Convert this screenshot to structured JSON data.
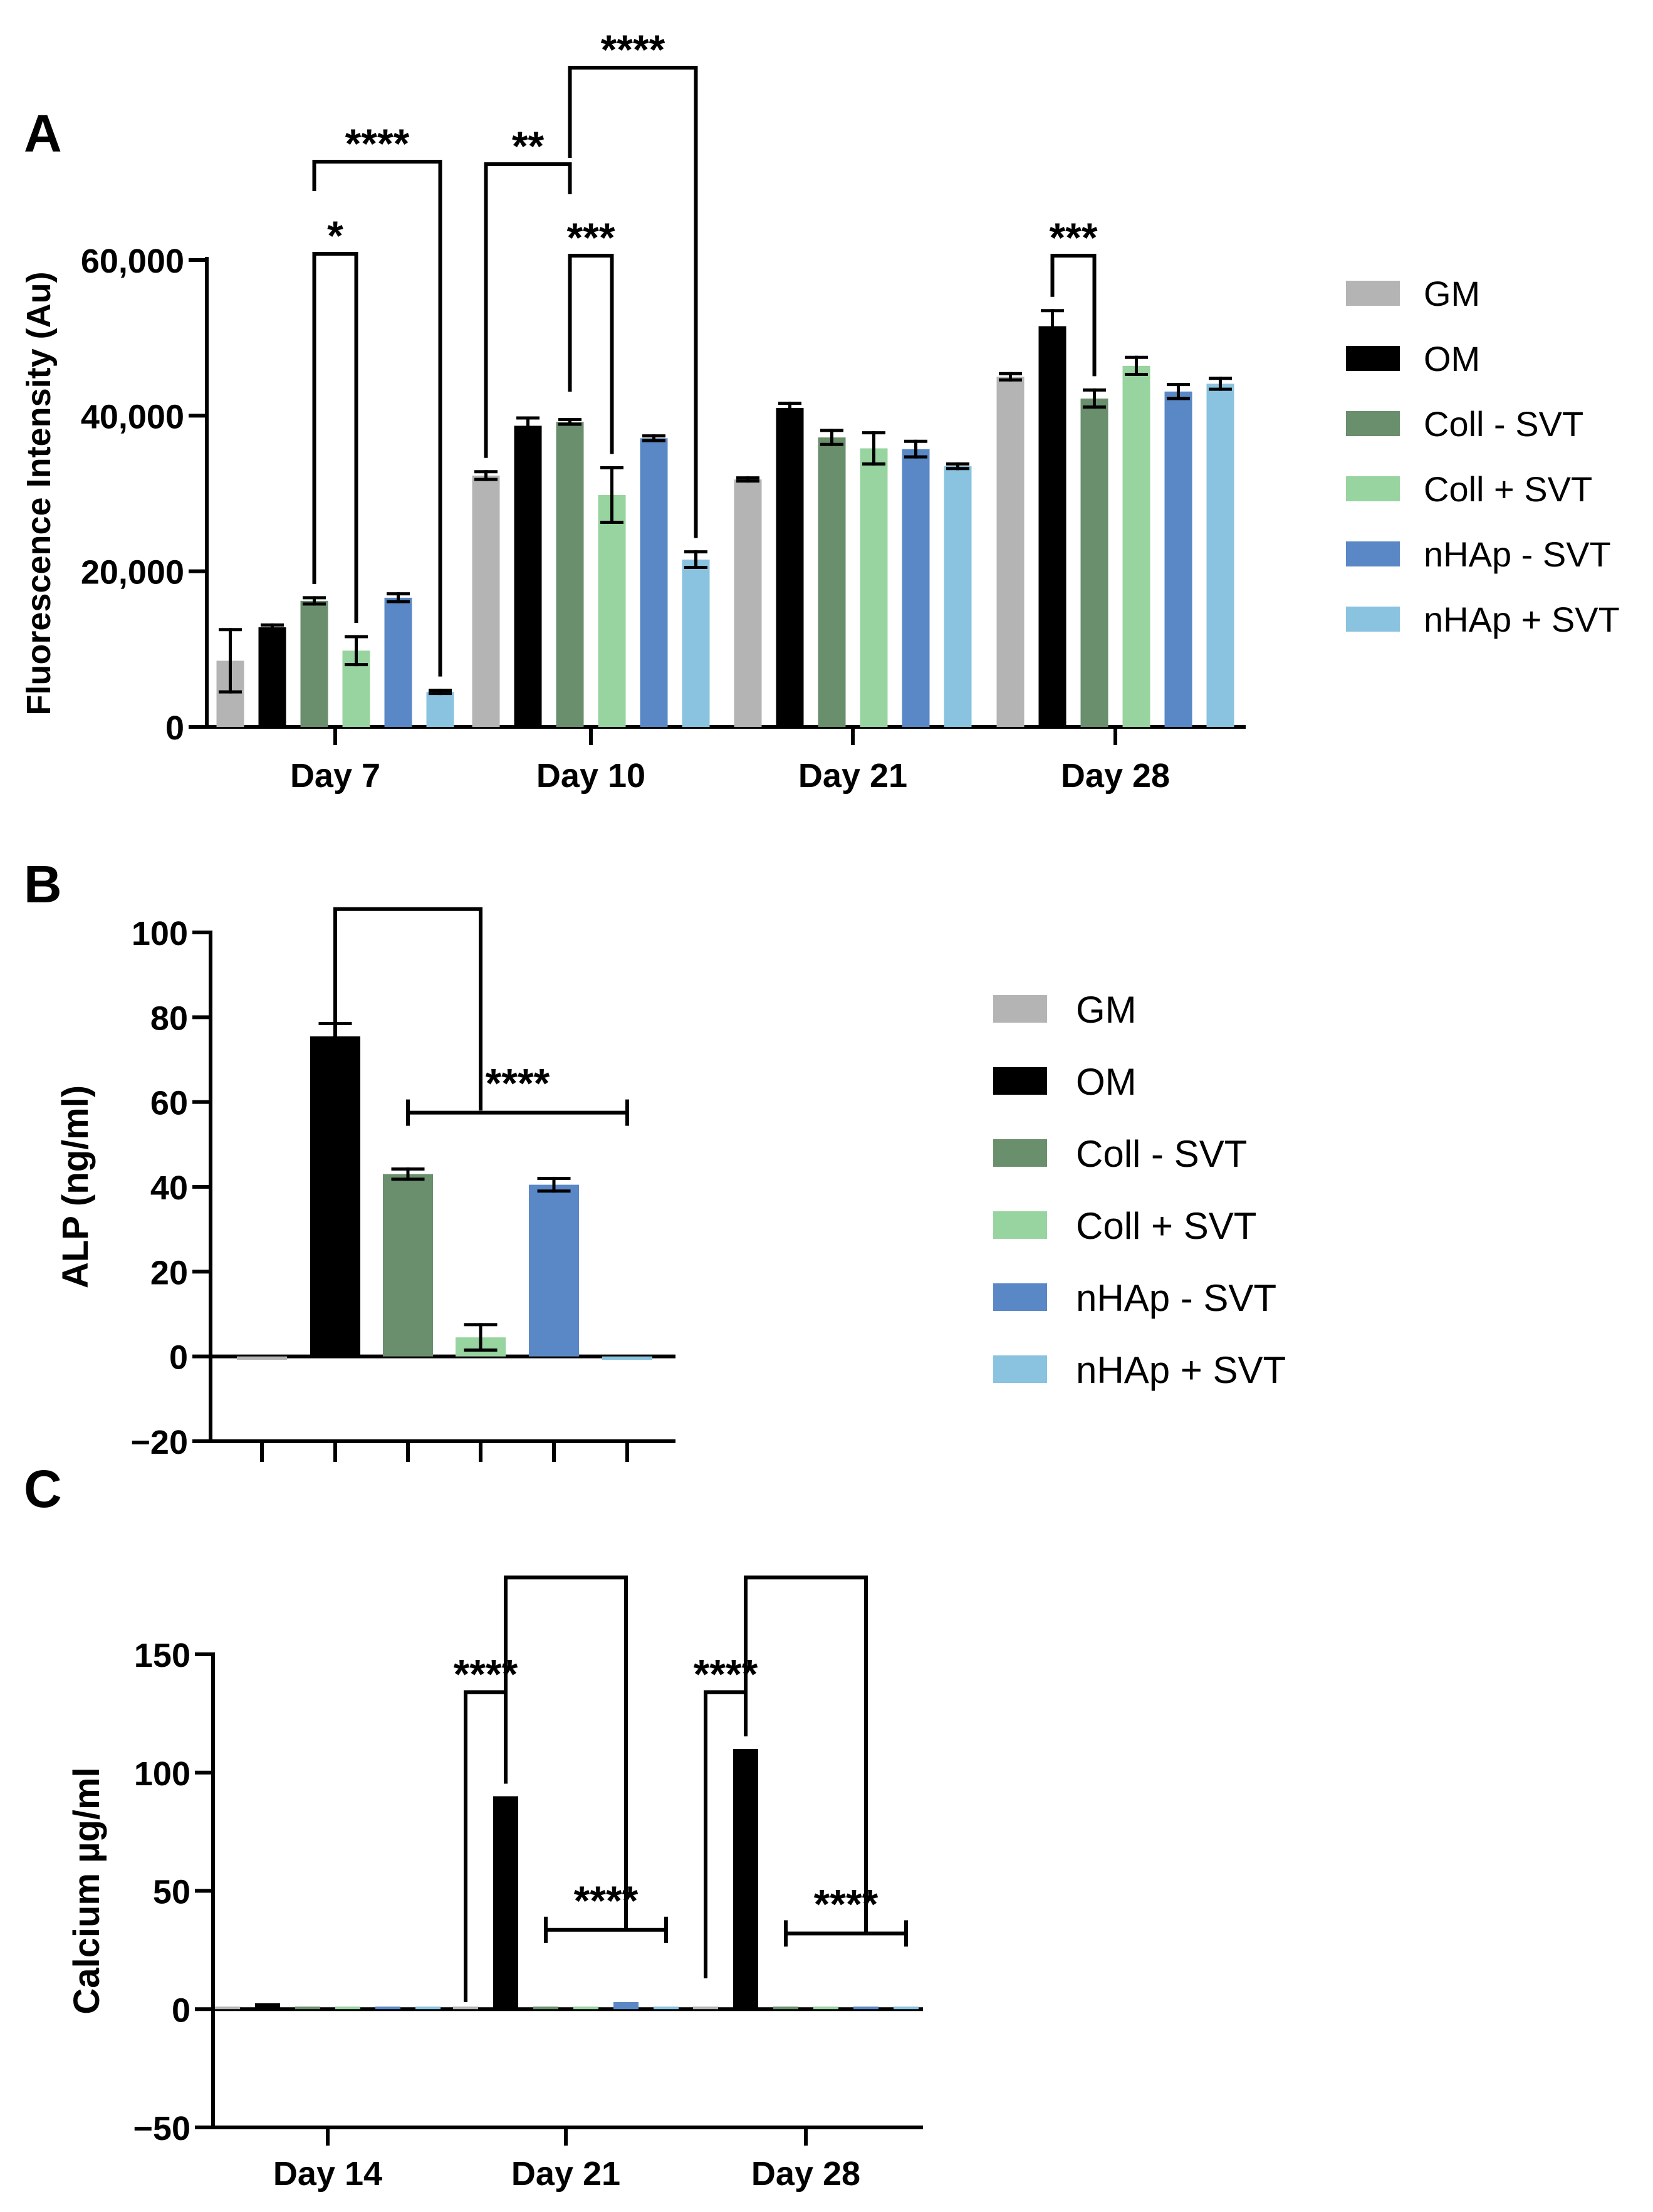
{
  "colors": {
    "GM": "#b4b4b4",
    "OM": "#000000",
    "Coll - SVT": "#6a8f6d",
    "Coll + SVT": "#98d49f",
    "nHAp - SVT": "#5a88c6",
    "nHAp + SVT": "#8ac3df"
  },
  "chart_data": [
    {
      "panel": "A",
      "type": "bar",
      "ylabel": "Fluorescence Intensity (Au)",
      "ylim": [
        0,
        60000
      ],
      "yticks": [
        0,
        20000,
        40000,
        60000
      ],
      "ytick_labels": [
        "0",
        "20,000",
        "40,000",
        "60,000"
      ],
      "categories": [
        "Day 7",
        "Day 10",
        "Day 21",
        "Day 28"
      ],
      "legend": [
        "GM",
        "OM",
        "Coll - SVT",
        "Coll + SVT",
        "nHAp - SVT",
        "nHAp + SVT"
      ],
      "legend_position": "right",
      "series": [
        {
          "name": "GM",
          "values": [
            8500,
            32300,
            31800,
            45000
          ],
          "errors": [
            4000,
            500,
            200,
            400
          ]
        },
        {
          "name": "OM",
          "values": [
            12800,
            38700,
            41000,
            51500
          ],
          "errors": [
            300,
            1000,
            600,
            2000
          ]
        },
        {
          "name": "Coll - SVT",
          "values": [
            16200,
            39200,
            37200,
            42200
          ],
          "errors": [
            400,
            300,
            900,
            1100
          ]
        },
        {
          "name": "Coll + SVT",
          "values": [
            9800,
            29800,
            35800,
            46400
          ],
          "errors": [
            1800,
            3500,
            2000,
            1100
          ]
        },
        {
          "name": "nHAp - SVT",
          "values": [
            16600,
            37100,
            35700,
            43100
          ],
          "errors": [
            500,
            300,
            1000,
            900
          ]
        },
        {
          "name": "nHAp + SVT",
          "values": [
            4500,
            21500,
            33500,
            44100
          ],
          "errors": [
            200,
            1000,
            300,
            700
          ]
        }
      ],
      "annotations": [
        {
          "label": "*",
          "from": [
            "Day 7",
            "Coll - SVT"
          ],
          "to": [
            "Day 7",
            "Coll + SVT"
          ]
        },
        {
          "label": "****",
          "from": [
            "Day 7",
            "Coll - SVT"
          ],
          "to": [
            "Day 7",
            "nHAp + SVT"
          ]
        },
        {
          "label": "**",
          "from": [
            "Day 10",
            "GM"
          ],
          "to": [
            "Day 10",
            "Coll - SVT"
          ]
        },
        {
          "label": "***",
          "from": [
            "Day 10",
            "Coll - SVT"
          ],
          "to": [
            "Day 10",
            "Coll + SVT"
          ]
        },
        {
          "label": "****",
          "from": [
            "Day 10",
            "Coll - SVT"
          ],
          "to": [
            "Day 10",
            "nHAp + SVT"
          ]
        },
        {
          "label": "***",
          "from": [
            "Day 28",
            "OM"
          ],
          "to": [
            "Day 28",
            "Coll - SVT"
          ]
        }
      ]
    },
    {
      "panel": "B",
      "type": "bar",
      "ylabel": "ALP (ng/ml)",
      "ylim": [
        -20,
        100
      ],
      "yticks": [
        -20,
        0,
        20,
        40,
        60,
        80,
        100
      ],
      "ytick_labels": [
        "−20",
        "0",
        "20",
        "40",
        "60",
        "80",
        "100"
      ],
      "categories": [
        "GM",
        "OM",
        "Coll - SVT",
        "Coll + SVT",
        "nHAp - SVT",
        "nHAp + SVT"
      ],
      "legend": [
        "GM",
        "OM",
        "Coll - SVT",
        "Coll + SVT",
        "nHAp - SVT",
        "nHAp + SVT"
      ],
      "legend_position": "right",
      "values": [
        -0.8,
        75.5,
        43,
        4.5,
        40.5,
        -0.8
      ],
      "errors": [
        0,
        3,
        1.2,
        3,
        1.5,
        0
      ],
      "annotations": [
        {
          "label": "",
          "from": "OM",
          "to": "Coll + SVT"
        },
        {
          "label": "****",
          "from": "Coll - SVT",
          "to": "nHAp + SVT"
        }
      ]
    },
    {
      "panel": "C",
      "type": "bar",
      "ylabel": "Calcium µg/ml",
      "ylim": [
        -50,
        150
      ],
      "yticks": [
        -50,
        0,
        50,
        100,
        150
      ],
      "ytick_labels": [
        "−50",
        "0",
        "50",
        "100",
        "150"
      ],
      "categories": [
        "Day 14",
        "Day 21",
        "Day 28"
      ],
      "series": [
        {
          "name": "GM",
          "values": [
            0,
            0.8,
            0
          ]
        },
        {
          "name": "OM",
          "values": [
            2.5,
            90,
            110
          ]
        },
        {
          "name": "Coll - SVT",
          "values": [
            0,
            0,
            0
          ]
        },
        {
          "name": "Coll + SVT",
          "values": [
            0,
            0,
            0
          ]
        },
        {
          "name": "nHAp - SVT",
          "values": [
            0,
            3,
            0
          ]
        },
        {
          "name": "nHAp + SVT",
          "values": [
            0,
            0,
            0
          ]
        }
      ],
      "annotations": [
        {
          "label": "****",
          "from": [
            "Day 21",
            "GM"
          ],
          "to": [
            "Day 21",
            "OM"
          ]
        },
        {
          "label": "",
          "from": [
            "Day 21",
            "OM"
          ],
          "to": [
            "Day 21",
            "nHAp - SVT"
          ]
        },
        {
          "label": "****",
          "from": [
            "Day 21",
            "Coll - SVT"
          ],
          "to": [
            "Day 21",
            "nHAp + SVT"
          ]
        },
        {
          "label": "****",
          "from": [
            "Day 28",
            "GM"
          ],
          "to": [
            "Day 28",
            "OM"
          ]
        },
        {
          "label": "",
          "from": [
            "Day 28",
            "OM"
          ],
          "to": [
            "Day 28",
            "nHAp - SVT"
          ]
        },
        {
          "label": "****",
          "from": [
            "Day 28",
            "Coll - SVT"
          ],
          "to": [
            "Day 28",
            "nHAp + SVT"
          ]
        }
      ]
    }
  ],
  "panel_labels": [
    "A",
    "B",
    "C"
  ]
}
